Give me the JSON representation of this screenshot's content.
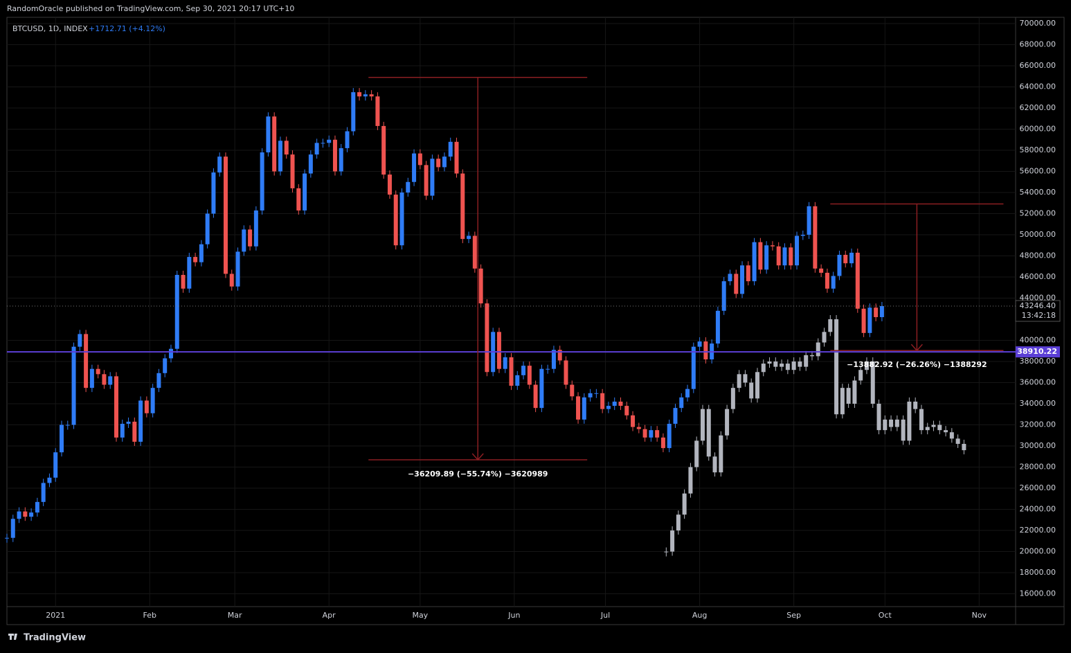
{
  "header": {
    "byline": "RandomOracle published on TradingView.com, Sep 30, 2021 20:17 UTC+10"
  },
  "footer": {
    "brand": "TradingView"
  },
  "chart_data": {
    "type": "candlestick",
    "symbol": "BTCUSD, 1D, INDEX",
    "change": "+1712.71 (+4.12%)",
    "xlim": [
      -16,
      316
    ],
    "xticks": [
      {
        "value": 0,
        "label": "2021"
      },
      {
        "value": 31,
        "label": "Feb"
      },
      {
        "value": 59,
        "label": "Mar"
      },
      {
        "value": 90,
        "label": "Apr"
      },
      {
        "value": 120,
        "label": "May"
      },
      {
        "value": 151,
        "label": "Jun"
      },
      {
        "value": 181,
        "label": "Jul"
      },
      {
        "value": 212,
        "label": "Aug"
      },
      {
        "value": 243,
        "label": "Sep"
      },
      {
        "value": 273,
        "label": "Oct"
      },
      {
        "value": 304,
        "label": "Nov"
      }
    ],
    "ylim": [
      14790,
      70590
    ],
    "yticks": [
      {
        "value": 16000,
        "label": "16000.00"
      },
      {
        "value": 18000,
        "label": "18000.00"
      },
      {
        "value": 20000,
        "label": "20000.00"
      },
      {
        "value": 22000,
        "label": "22000.00"
      },
      {
        "value": 24000,
        "label": "24000.00"
      },
      {
        "value": 26000,
        "label": "26000.00"
      },
      {
        "value": 28000,
        "label": "28000.00"
      },
      {
        "value": 30000,
        "label": "30000.00"
      },
      {
        "value": 32000,
        "label": "32000.00"
      },
      {
        "value": 34000,
        "label": "34000.00"
      },
      {
        "value": 36000,
        "label": "36000.00"
      },
      {
        "value": 38000,
        "label": "38000.00"
      },
      {
        "value": 40000,
        "label": "40000.00"
      },
      {
        "value": 44000,
        "label": "44000.00"
      },
      {
        "value": 46000,
        "label": "46000.00"
      },
      {
        "value": 48000,
        "label": "48000.00"
      },
      {
        "value": 50000,
        "label": "50000.00"
      },
      {
        "value": 52000,
        "label": "52000.00"
      },
      {
        "value": 54000,
        "label": "54000.00"
      },
      {
        "value": 56000,
        "label": "56000.00"
      },
      {
        "value": 58000,
        "label": "58000.00"
      },
      {
        "value": 60000,
        "label": "60000.00"
      },
      {
        "value": 62000,
        "label": "62000.00"
      },
      {
        "value": 64000,
        "label": "64000.00"
      },
      {
        "value": 66000,
        "label": "66000.00"
      },
      {
        "value": 68000,
        "label": "68000.00"
      },
      {
        "value": 70000,
        "label": "70000.00"
      }
    ],
    "grid": true,
    "up_color": "#2f7cf6",
    "down_color": "#ef5350",
    "series": [
      {
        "color": "mixed",
        "x": [
          -16,
          -14,
          -12,
          -10,
          -8,
          -6,
          -4,
          -2,
          0,
          2,
          4,
          6,
          8,
          10,
          12,
          14,
          16,
          18,
          20,
          22,
          24,
          26,
          28,
          30,
          32,
          34,
          36,
          38,
          40,
          42,
          44,
          46,
          48,
          50,
          52,
          54,
          56,
          58,
          60,
          62,
          64,
          66,
          68,
          70,
          72,
          74,
          76,
          78,
          80,
          82,
          84,
          86,
          88,
          90,
          92,
          94,
          96,
          98,
          100,
          102,
          104,
          106,
          108,
          110,
          112,
          114,
          116,
          118,
          120,
          122,
          124,
          126,
          128,
          130,
          132,
          134,
          136,
          138,
          140,
          142,
          144,
          146,
          148,
          150,
          152,
          154,
          156,
          158,
          160,
          162,
          164,
          166,
          168,
          170,
          172,
          174,
          176,
          178,
          180,
          182,
          184,
          186,
          188,
          190,
          192,
          194,
          196,
          198,
          200,
          202,
          204,
          206,
          208,
          210,
          212,
          214,
          216,
          218,
          220,
          222,
          224,
          226,
          228,
          230,
          232,
          234,
          236,
          238,
          240,
          242,
          244,
          246,
          248,
          250,
          252,
          254,
          256,
          258,
          260,
          262,
          264,
          266,
          268,
          270,
          272
        ],
        "values": [
          21300,
          23100,
          23800,
          23300,
          23700,
          24700,
          26500,
          27000,
          29400,
          32000,
          32000,
          39400,
          40600,
          35500,
          37300,
          36800,
          35800,
          36600,
          30800,
          32100,
          32300,
          30400,
          34300,
          33100,
          35500,
          36900,
          38300,
          39200,
          46200,
          44900,
          47900,
          47400,
          49100,
          52000,
          55900,
          57400,
          46300,
          45100,
          48400,
          50500,
          48900,
          52300,
          57800,
          61200,
          56000,
          58900,
          57600,
          54400,
          52300,
          55800,
          57600,
          58700,
          58700,
          59000,
          56000,
          58200,
          59800,
          63500,
          63100,
          63300,
          63100,
          60300,
          55700,
          53800,
          49000,
          54000,
          55000,
          57700,
          56600,
          53700,
          57200,
          56400,
          57400,
          58800,
          55800,
          49600,
          49900,
          46800,
          43500,
          37000,
          40800,
          37300,
          38400,
          35700,
          36700,
          37600,
          35800,
          33600,
          37300,
          37300,
          39100,
          38100,
          35800,
          34700,
          32500,
          34600,
          35000,
          35000,
          33500,
          33800,
          34200,
          33800,
          32900,
          31800,
          31600,
          30800,
          31500,
          30800,
          29800,
          32100,
          33600,
          34600,
          35400,
          39400,
          39900,
          38200,
          39700,
          42800,
          45600,
          46300,
          44400,
          47100,
          45600,
          49300,
          46700,
          49000,
          48900,
          47100,
          48800,
          47100,
          49900,
          50000,
          52700,
          46800,
          46400,
          44900,
          46100,
          48100,
          47300,
          48300,
          43000,
          40700,
          43100,
          42200,
          43246
        ]
      },
      {
        "color": "#b2b5be",
        "x": [
          201,
          203,
          205,
          207,
          209,
          211,
          213,
          215,
          217,
          219,
          221,
          223,
          225,
          227,
          229,
          231,
          233,
          235,
          237,
          239,
          241,
          243,
          245,
          247,
          249,
          251,
          253,
          255,
          257,
          259,
          261,
          263,
          265,
          267,
          269,
          271,
          273,
          275,
          277,
          279,
          281,
          283,
          285,
          287,
          289,
          291,
          293,
          295,
          297,
          299
        ],
        "values": [
          20000,
          22000,
          23500,
          25500,
          28000,
          30500,
          33500,
          29000,
          27500,
          31000,
          33500,
          35500,
          36800,
          36000,
          34500,
          37000,
          37800,
          38000,
          37500,
          37800,
          37200,
          38000,
          37500,
          38600,
          38500,
          39800,
          40800,
          42000,
          33000,
          35500,
          34000,
          36200,
          37200,
          38000,
          34000,
          31500,
          32500,
          31800,
          32500,
          30500,
          34200,
          33500,
          31500,
          31800,
          32000,
          31500,
          31300,
          30700,
          30200,
          29600
        ]
      }
    ],
    "last_price": {
      "value": 43246.4,
      "label": "43246.40"
    },
    "countdown": "13:42:18",
    "hline": {
      "value": 38910.22,
      "label": "38910.22",
      "color": "#5b3fd6"
    },
    "measures": [
      {
        "label": "−36209.89 (−55.74%) −3620989",
        "top": 64900,
        "bottom": 28690,
        "x": [
          103,
          175
        ],
        "arrow_x": 139
      },
      {
        "label": "−13882.92 (−26.26%) −1388292",
        "top": 52920,
        "bottom": 39037,
        "x": [
          255,
          312
        ],
        "arrow_x": 283.5
      }
    ],
    "measure_color": "#8b1e22"
  }
}
